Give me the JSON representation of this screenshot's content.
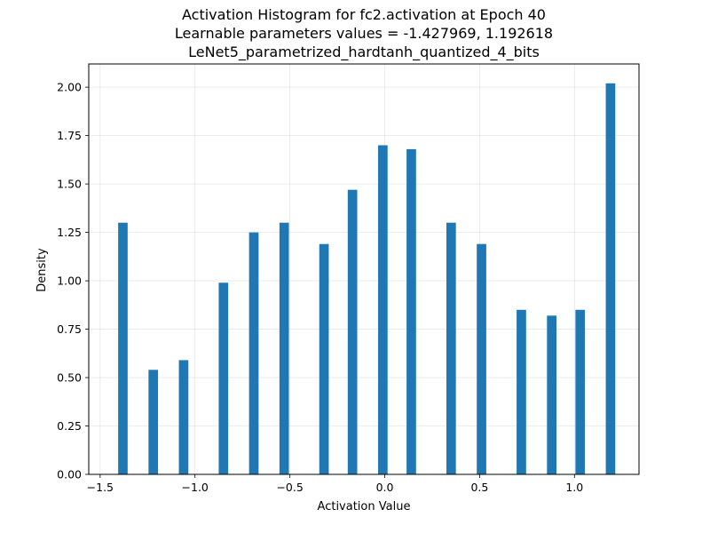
{
  "chart_data": {
    "type": "bar",
    "title_lines": [
      "Activation Histogram for fc2.activation at Epoch 40",
      "Learnable parameters values = -1.427969, 1.192618",
      "LeNet5_parametrized_hardtanh_quantized_4_bits"
    ],
    "xlabel": "Activation Value",
    "ylabel": "Density",
    "xlim": [
      -1.56,
      1.34
    ],
    "ylim": [
      0,
      2.12
    ],
    "grid": true,
    "bar_width": 0.05,
    "bar_color": "#1f77b4",
    "xticks": [
      {
        "value": -1.5,
        "label": "−1.5"
      },
      {
        "value": -1.0,
        "label": "−1.0"
      },
      {
        "value": -0.5,
        "label": "−0.5"
      },
      {
        "value": 0.0,
        "label": "0.0"
      },
      {
        "value": 0.5,
        "label": "0.5"
      },
      {
        "value": 1.0,
        "label": "1.0"
      }
    ],
    "yticks": [
      {
        "value": 0.0,
        "label": "0.00"
      },
      {
        "value": 0.25,
        "label": "0.25"
      },
      {
        "value": 0.5,
        "label": "0.50"
      },
      {
        "value": 0.75,
        "label": "0.75"
      },
      {
        "value": 1.0,
        "label": "1.00"
      },
      {
        "value": 1.25,
        "label": "1.25"
      },
      {
        "value": 1.5,
        "label": "1.50"
      },
      {
        "value": 1.75,
        "label": "1.75"
      },
      {
        "value": 2.0,
        "label": "2.00"
      }
    ],
    "bars": [
      {
        "x": -1.38,
        "value": 1.3
      },
      {
        "x": -1.22,
        "value": 0.54
      },
      {
        "x": -1.06,
        "value": 0.59
      },
      {
        "x": -0.85,
        "value": 0.99
      },
      {
        "x": -0.69,
        "value": 1.25
      },
      {
        "x": -0.53,
        "value": 1.3
      },
      {
        "x": -0.32,
        "value": 1.19
      },
      {
        "x": -0.17,
        "value": 1.47
      },
      {
        "x": -0.01,
        "value": 1.7
      },
      {
        "x": 0.14,
        "value": 1.68
      },
      {
        "x": 0.35,
        "value": 1.3
      },
      {
        "x": 0.51,
        "value": 1.19
      },
      {
        "x": 0.72,
        "value": 0.85
      },
      {
        "x": 0.88,
        "value": 0.82
      },
      {
        "x": 1.03,
        "value": 0.85
      },
      {
        "x": 1.19,
        "value": 2.02
      }
    ]
  }
}
